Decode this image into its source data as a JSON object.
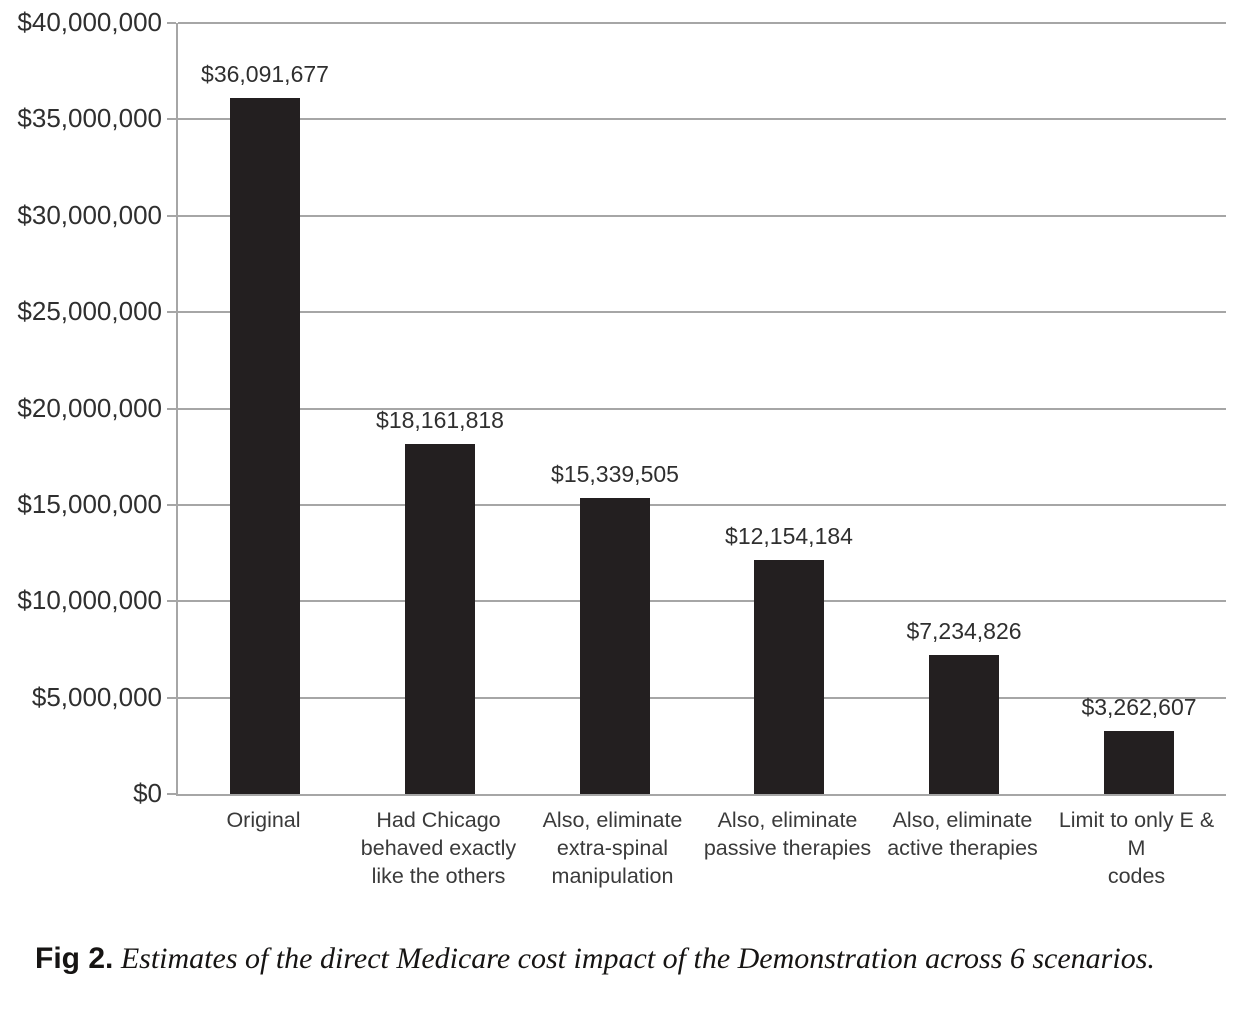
{
  "chart_data": {
    "type": "bar",
    "title": "",
    "xlabel": "",
    "ylabel": "",
    "categories": [
      "Original",
      "Had Chicago\nbehaved exactly\nlike the others",
      "Also, eliminate\nextra-spinal\nmanipulation",
      "Also, eliminate\npassive therapies",
      "Also, eliminate\nactive therapies",
      "Limit to only E & M\ncodes"
    ],
    "values": [
      36091677,
      18161818,
      15339505,
      12154184,
      7234826,
      3262607
    ],
    "value_labels": [
      "$36,091,677",
      "$18,161,818",
      "$15,339,505",
      "$12,154,184",
      "$7,234,826",
      "$3,262,607"
    ],
    "y_tick_values": [
      0,
      5000000,
      10000000,
      15000000,
      20000000,
      25000000,
      30000000,
      35000000,
      40000000
    ],
    "y_tick_labels": [
      "$0",
      "$5,000,000",
      "$10,000,000",
      "$15,000,000",
      "$20,000,000",
      "$25,000,000",
      "$30,000,000",
      "$35,000,000",
      "$40,000,000"
    ],
    "ylim": [
      0,
      40000000
    ],
    "grid": "horizontal",
    "legend": "none",
    "bar_color": "#231f20",
    "grid_color": "#a6a6a6",
    "label_color": "#2f2f2f"
  },
  "caption": {
    "label": "Fig 2.",
    "text": " Estimates of the direct Medicare cost impact of the Demonstration across 6 scenarios."
  }
}
